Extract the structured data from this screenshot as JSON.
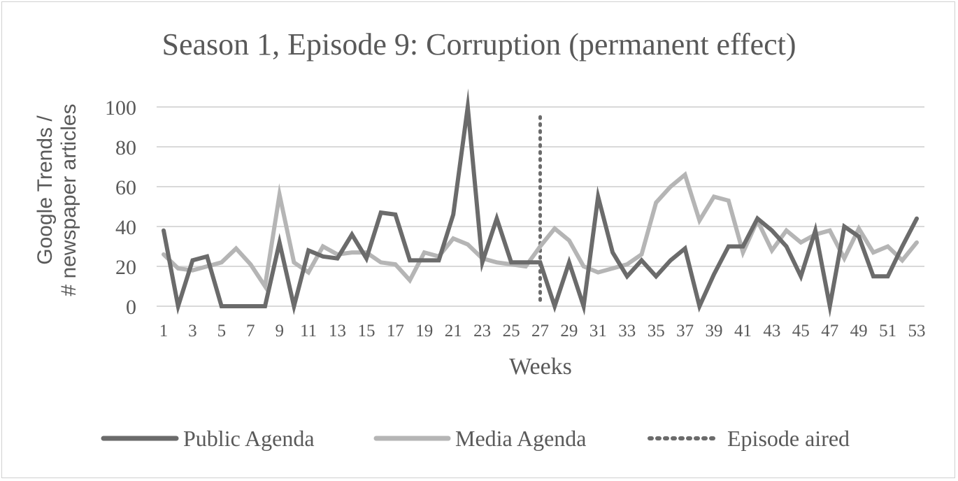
{
  "chart_data": {
    "type": "line",
    "title": "Season 1, Episode 9: Corruption (permanent effect)",
    "xlabel": "Weeks",
    "ylabel_line1": "Google Trends /",
    "ylabel_line2": "# newspaper articles",
    "ylim": [
      0,
      100
    ],
    "yticks": [
      0,
      20,
      40,
      60,
      80,
      100
    ],
    "xlim": [
      1,
      53
    ],
    "xticks": [
      1,
      3,
      5,
      7,
      9,
      11,
      13,
      15,
      17,
      19,
      21,
      23,
      25,
      27,
      29,
      31,
      33,
      35,
      37,
      39,
      41,
      43,
      45,
      47,
      49,
      51,
      53
    ],
    "x": [
      1,
      2,
      3,
      4,
      5,
      6,
      7,
      8,
      9,
      10,
      11,
      12,
      13,
      14,
      15,
      16,
      17,
      18,
      19,
      20,
      21,
      22,
      23,
      24,
      25,
      26,
      27,
      28,
      29,
      30,
      31,
      32,
      33,
      34,
      35,
      36,
      37,
      38,
      39,
      40,
      41,
      42,
      43,
      44,
      45,
      46,
      47,
      48,
      49,
      50,
      51,
      52,
      53
    ],
    "grid": "horizontal",
    "legend_position": "bottom",
    "series": [
      {
        "name": "Public Agenda",
        "color": "#6b6b6b",
        "values": [
          38,
          0,
          23,
          25,
          0,
          0,
          0,
          0,
          32,
          0,
          28,
          25,
          24,
          36,
          24,
          47,
          46,
          23,
          23,
          23,
          46,
          100,
          22,
          44,
          22,
          22,
          22,
          0,
          22,
          0,
          55,
          27,
          15,
          23,
          15,
          23,
          29,
          0,
          16,
          30,
          30,
          44,
          38,
          30,
          15,
          38,
          0,
          40,
          35,
          15,
          15,
          30,
          44
        ]
      },
      {
        "name": "Media Agenda",
        "color": "#b5b5b5",
        "values": [
          26,
          19,
          18,
          20,
          22,
          29,
          21,
          10,
          56,
          22,
          17,
          30,
          26,
          27,
          27,
          22,
          21,
          13,
          27,
          25,
          34,
          31,
          24,
          22,
          21,
          20,
          30,
          39,
          33,
          20,
          17,
          19,
          21,
          26,
          52,
          60,
          66,
          43,
          55,
          53,
          27,
          43,
          28,
          38,
          32,
          36,
          38,
          24,
          39,
          27,
          30,
          23,
          32
        ]
      }
    ],
    "markers": [
      {
        "name": "Episode aired",
        "x": 27,
        "color": "#6b6b6b",
        "style": "dotted"
      }
    ]
  }
}
